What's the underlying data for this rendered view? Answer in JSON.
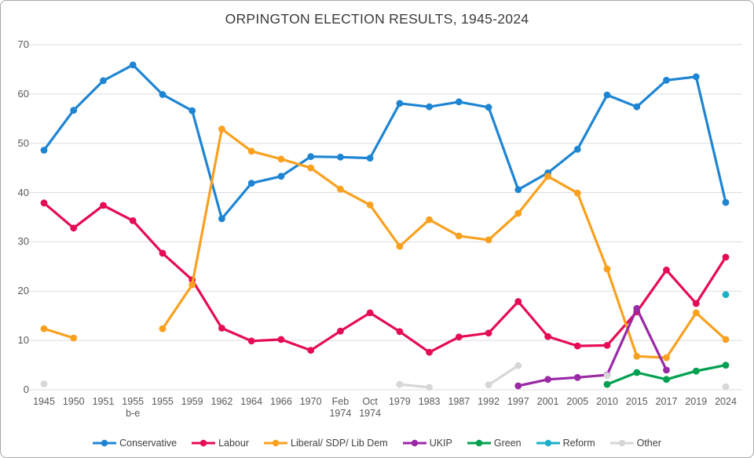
{
  "title": "ORPINGTON ELECTION RESULTS, 1945-2024",
  "chart_data": {
    "type": "line",
    "title": "ORPINGTON ELECTION RESULTS, 1945-2024",
    "categories": [
      "1945",
      "1950",
      "1951",
      "1955\nb-e",
      "1955",
      "1959",
      "1962",
      "1964",
      "1966",
      "1970",
      "Feb\n1974",
      "Oct\n1974",
      "1979",
      "1983",
      "1987",
      "1992",
      "1997",
      "2001",
      "2005",
      "2010",
      "2015",
      "2017",
      "2019",
      "2024"
    ],
    "ylim": [
      0,
      70
    ],
    "yticks": [
      0,
      10,
      20,
      30,
      40,
      50,
      60,
      70
    ],
    "grid": "horizontal",
    "gridline_color": "#dcdcdc",
    "axis_label_color": "#595959",
    "legend_position": "bottom",
    "series": [
      {
        "name": "Conservative",
        "color": "#1e85d3",
        "values": [
          48.6,
          56.7,
          62.7,
          65.9,
          59.9,
          56.6,
          34.7,
          41.9,
          43.3,
          47.3,
          47.2,
          47.0,
          58.1,
          57.4,
          58.4,
          57.3,
          40.6,
          44.0,
          48.8,
          59.8,
          57.4,
          62.8,
          63.5,
          38.0
        ]
      },
      {
        "name": "Labour",
        "color": "#e50c54",
        "values": [
          37.9,
          32.8,
          37.4,
          34.3,
          27.7,
          22.3,
          12.5,
          9.9,
          10.2,
          8.0,
          11.9,
          15.6,
          11.8,
          7.6,
          10.7,
          11.5,
          17.9,
          10.8,
          8.9,
          9.0,
          15.8,
          24.3,
          17.5,
          26.9
        ]
      },
      {
        "name": "Liberal/ SDP/ Lib Dem",
        "color": "#f9a11f",
        "values": [
          12.4,
          10.5,
          null,
          null,
          12.4,
          21.3,
          52.9,
          48.4,
          46.8,
          45.0,
          40.7,
          37.5,
          29.1,
          34.5,
          31.2,
          30.4,
          35.8,
          43.3,
          39.9,
          24.5,
          6.8,
          6.5,
          15.6,
          10.2
        ]
      },
      {
        "name": "UKIP",
        "color": "#9929a5",
        "values": [
          null,
          null,
          null,
          null,
          null,
          null,
          null,
          null,
          null,
          null,
          null,
          null,
          null,
          null,
          null,
          null,
          0.8,
          2.1,
          2.5,
          3.0,
          16.5,
          4.0,
          null,
          null
        ]
      },
      {
        "name": "Green",
        "color": "#00a050",
        "values": [
          null,
          null,
          null,
          null,
          null,
          null,
          null,
          null,
          null,
          null,
          null,
          null,
          null,
          null,
          null,
          null,
          null,
          null,
          null,
          1.1,
          3.5,
          2.1,
          3.8,
          5.0
        ]
      },
      {
        "name": "Reform",
        "color": "#1cb0c9",
        "values": [
          null,
          null,
          null,
          null,
          null,
          null,
          null,
          null,
          null,
          null,
          null,
          null,
          null,
          null,
          null,
          null,
          null,
          null,
          null,
          null,
          null,
          null,
          null,
          19.3
        ]
      },
      {
        "name": "Other",
        "color": "#d7d7d7",
        "values": [
          1.2,
          null,
          null,
          null,
          null,
          null,
          null,
          null,
          null,
          null,
          null,
          null,
          1.1,
          0.5,
          null,
          1.0,
          4.9,
          null,
          null,
          2.9,
          null,
          null,
          null,
          0.6
        ]
      }
    ]
  }
}
